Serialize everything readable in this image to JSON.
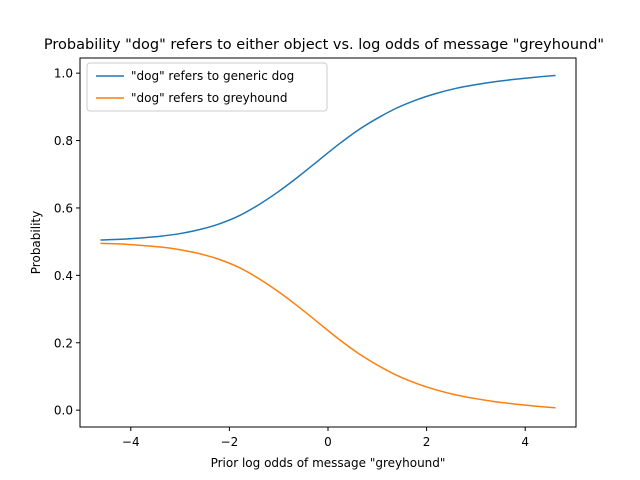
{
  "chart_data": {
    "type": "line",
    "title": "Probability \"dog\" refers to either object vs. log odds of message \"greyhound\"",
    "xlabel": "Prior log odds of message \"greyhound\"",
    "ylabel": "Probability",
    "xlim": [
      -5.03,
      5.03
    ],
    "ylim": [
      -0.05,
      1.045
    ],
    "xticks": [
      -4,
      -2,
      0,
      2,
      4
    ],
    "xtick_labels": [
      "−4",
      "−2",
      "0",
      "2",
      "4"
    ],
    "yticks": [
      0.0,
      0.2,
      0.4,
      0.6,
      0.8,
      1.0
    ],
    "ytick_labels": [
      "0.0",
      "0.2",
      "0.4",
      "0.6",
      "0.8",
      "1.0"
    ],
    "grid": false,
    "legend_position": "top-left",
    "x": [
      -4.6,
      -4.2,
      -3.8,
      -3.4,
      -3.0,
      -2.6,
      -2.2,
      -1.8,
      -1.4,
      -1.0,
      -0.6,
      -0.2,
      0.2,
      0.6,
      1.0,
      1.4,
      1.8,
      2.2,
      2.6,
      3.0,
      3.4,
      3.8,
      4.2,
      4.6
    ],
    "series": [
      {
        "name": "\"dog\" refers to generic dog",
        "color": "#1f77b4",
        "values": [
          0.505,
          0.507,
          0.511,
          0.516,
          0.524,
          0.536,
          0.553,
          0.577,
          0.61,
          0.649,
          0.693,
          0.74,
          0.787,
          0.83,
          0.866,
          0.897,
          0.921,
          0.94,
          0.955,
          0.966,
          0.975,
          0.982,
          0.988,
          0.993
        ]
      },
      {
        "name": "\"dog\" refers to greyhound",
        "color": "#ff7f0e",
        "values": [
          0.495,
          0.493,
          0.489,
          0.484,
          0.476,
          0.464,
          0.447,
          0.423,
          0.39,
          0.351,
          0.307,
          0.26,
          0.213,
          0.17,
          0.134,
          0.103,
          0.079,
          0.06,
          0.045,
          0.034,
          0.025,
          0.018,
          0.012,
          0.007
        ]
      }
    ]
  }
}
